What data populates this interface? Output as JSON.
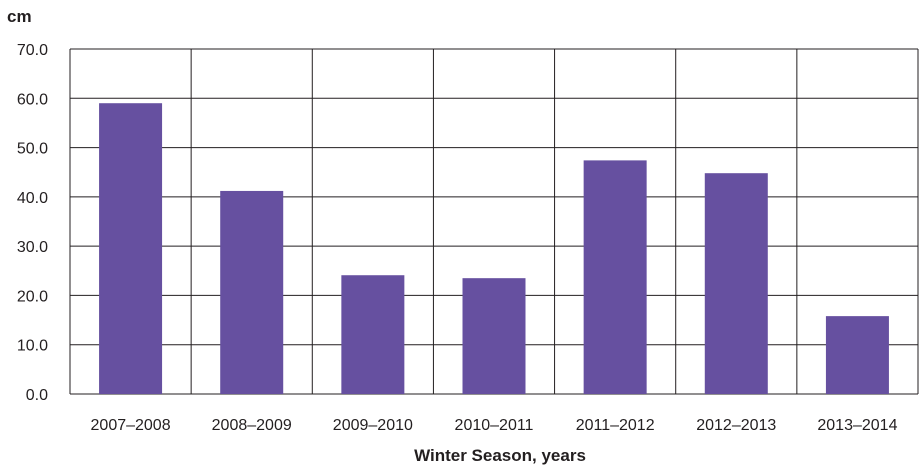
{
  "chart_data": {
    "type": "bar",
    "ylabel": "cm",
    "xlabel": "Winter Season, years",
    "categories": [
      "2007–2008",
      "2008–2009",
      "2009–2010",
      "2010–2011",
      "2011–2012",
      "2012–2013",
      "2013–2014"
    ],
    "values": [
      59.0,
      41.2,
      24.1,
      23.5,
      47.4,
      44.8,
      15.8
    ],
    "ylim": [
      0,
      70
    ],
    "yticks": [
      "0.0",
      "10.0",
      "20.0",
      "30.0",
      "40.0",
      "50.0",
      "60.0",
      "70.0"
    ],
    "grid": true,
    "bar_color": "#6650a0",
    "grid_color": "#231f20"
  }
}
